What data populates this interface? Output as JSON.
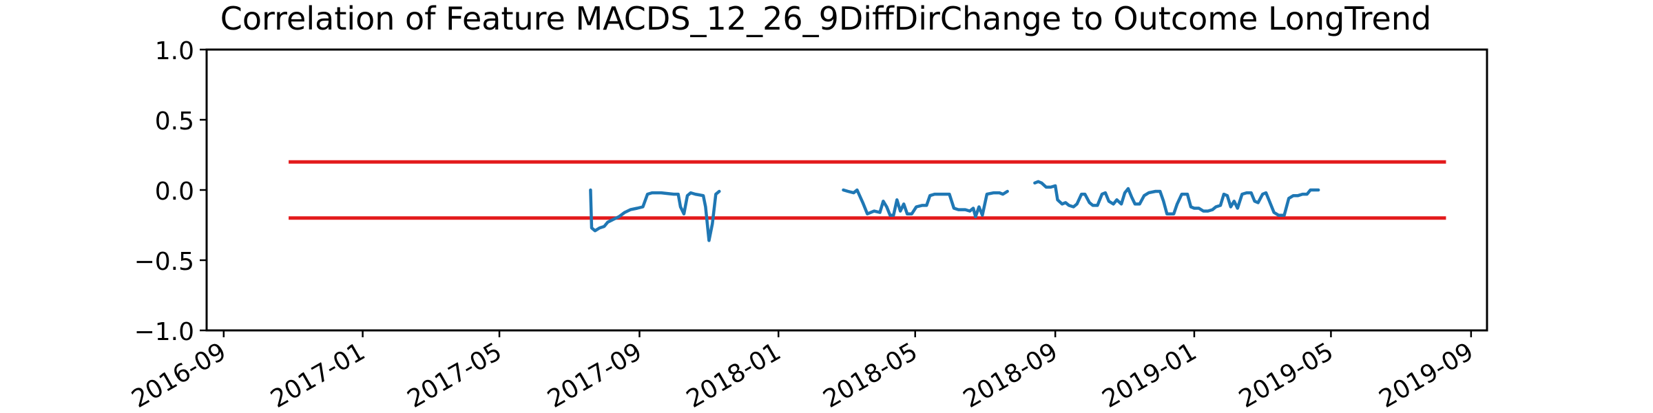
{
  "chart_data": {
    "type": "line",
    "title": "Correlation of Feature MACDS_12_26_9DiffDirChange to Outcome LongTrend",
    "xlabel": "",
    "ylabel": "",
    "ylim": [
      -1.0,
      1.0
    ],
    "xlim": [
      "2016-08-17",
      "2019-09-15"
    ],
    "grid": false,
    "legend": "none",
    "x_ticks": [
      "2016-09",
      "2017-01",
      "2017-05",
      "2017-09",
      "2018-01",
      "2018-05",
      "2018-09",
      "2019-01",
      "2019-05",
      "2019-09"
    ],
    "y_ticks": [
      "1.0",
      "0.5",
      "0.0",
      "−0.5",
      "−1.0"
    ],
    "y_tick_values": [
      1.0,
      0.5,
      0.0,
      -0.5,
      -1.0
    ],
    "colors": {
      "series": "#1f77b4",
      "threshold": "#e31a1c",
      "axes": "#000000"
    },
    "thresholds": [
      {
        "y": 0.2,
        "x": [
          "2016-10-28",
          "2019-08-10"
        ]
      },
      {
        "y": -0.2,
        "x": [
          "2016-10-28",
          "2019-08-10"
        ]
      }
    ],
    "series": [
      {
        "values": [
          [
            "2017-07-20",
            0.0
          ],
          [
            "2017-07-21",
            -0.27
          ],
          [
            "2017-07-24",
            -0.29
          ],
          [
            "2017-07-28",
            -0.27
          ],
          [
            "2017-08-01",
            -0.26
          ],
          [
            "2017-08-04",
            -0.23
          ],
          [
            "2017-08-09",
            -0.21
          ],
          [
            "2017-08-14",
            -0.19
          ],
          [
            "2017-08-19",
            -0.16
          ],
          [
            "2017-08-24",
            -0.14
          ],
          [
            "2017-08-30",
            -0.13
          ],
          [
            "2017-09-04",
            -0.12
          ],
          [
            "2017-09-08",
            -0.03
          ],
          [
            "2017-09-12",
            -0.02
          ],
          [
            "2017-09-20",
            -0.02
          ],
          [
            "2017-10-01",
            -0.03
          ],
          [
            "2017-10-05",
            -0.03
          ],
          [
            "2017-10-07",
            -0.12
          ],
          [
            "2017-10-10",
            -0.17
          ],
          [
            "2017-10-13",
            -0.04
          ],
          [
            "2017-10-16",
            -0.02
          ],
          [
            "2017-10-20",
            -0.03
          ],
          [
            "2017-10-27",
            -0.04
          ],
          [
            "2017-10-29",
            -0.12
          ],
          [
            "2017-11-01",
            -0.36
          ],
          [
            "2017-11-04",
            -0.24
          ],
          [
            "2017-11-07",
            -0.03
          ],
          [
            "2017-11-10",
            -0.01
          ],
          [
            "2017-11-11",
            null
          ],
          [
            "2018-02-27",
            0.0
          ],
          [
            "2018-03-03",
            -0.01
          ],
          [
            "2018-03-08",
            -0.02
          ],
          [
            "2018-03-11",
            0.0
          ],
          [
            "2018-03-16",
            -0.09
          ],
          [
            "2018-03-20",
            -0.17
          ],
          [
            "2018-03-26",
            -0.15
          ],
          [
            "2018-03-31",
            -0.16
          ],
          [
            "2018-04-03",
            -0.08
          ],
          [
            "2018-04-06",
            -0.12
          ],
          [
            "2018-04-09",
            -0.18
          ],
          [
            "2018-04-12",
            -0.18
          ],
          [
            "2018-04-15",
            -0.07
          ],
          [
            "2018-04-18",
            -0.15
          ],
          [
            "2018-04-21",
            -0.1
          ],
          [
            "2018-04-24",
            -0.17
          ],
          [
            "2018-04-28",
            -0.17
          ],
          [
            "2018-05-02",
            -0.12
          ],
          [
            "2018-05-07",
            -0.11
          ],
          [
            "2018-05-11",
            -0.11
          ],
          [
            "2018-05-14",
            -0.04
          ],
          [
            "2018-05-18",
            -0.03
          ],
          [
            "2018-05-24",
            -0.03
          ],
          [
            "2018-05-31",
            -0.03
          ],
          [
            "2018-06-04",
            -0.13
          ],
          [
            "2018-06-08",
            -0.14
          ],
          [
            "2018-06-14",
            -0.14
          ],
          [
            "2018-06-18",
            -0.15
          ],
          [
            "2018-06-21",
            -0.13
          ],
          [
            "2018-06-23",
            -0.19
          ],
          [
            "2018-06-26",
            -0.12
          ],
          [
            "2018-06-29",
            -0.18
          ],
          [
            "2018-07-03",
            -0.03
          ],
          [
            "2018-07-09",
            -0.02
          ],
          [
            "2018-07-14",
            -0.02
          ],
          [
            "2018-07-17",
            -0.03
          ],
          [
            "2018-07-21",
            -0.01
          ],
          [
            "2018-07-22",
            null
          ],
          [
            "2018-08-14",
            0.05
          ],
          [
            "2018-08-17",
            0.06
          ],
          [
            "2018-08-20",
            0.05
          ],
          [
            "2018-08-24",
            0.02
          ],
          [
            "2018-08-28",
            0.02
          ],
          [
            "2018-09-01",
            0.03
          ],
          [
            "2018-09-03",
            -0.07
          ],
          [
            "2018-09-07",
            -0.1
          ],
          [
            "2018-09-10",
            -0.09
          ],
          [
            "2018-09-13",
            -0.11
          ],
          [
            "2018-09-17",
            -0.12
          ],
          [
            "2018-09-20",
            -0.1
          ],
          [
            "2018-09-24",
            -0.03
          ],
          [
            "2018-09-27",
            -0.03
          ],
          [
            "2018-10-01",
            -0.09
          ],
          [
            "2018-10-04",
            -0.11
          ],
          [
            "2018-10-08",
            -0.11
          ],
          [
            "2018-10-12",
            -0.03
          ],
          [
            "2018-10-15",
            -0.02
          ],
          [
            "2018-10-18",
            -0.08
          ],
          [
            "2018-10-22",
            -0.1
          ],
          [
            "2018-10-25",
            -0.07
          ],
          [
            "2018-10-29",
            -0.1
          ],
          [
            "2018-11-01",
            -0.02
          ],
          [
            "2018-11-04",
            0.01
          ],
          [
            "2018-11-07",
            -0.05
          ],
          [
            "2018-11-10",
            -0.1
          ],
          [
            "2018-11-14",
            -0.1
          ],
          [
            "2018-11-18",
            -0.04
          ],
          [
            "2018-11-22",
            -0.02
          ],
          [
            "2018-11-28",
            -0.01
          ],
          [
            "2018-12-02",
            -0.01
          ],
          [
            "2018-12-05",
            -0.08
          ],
          [
            "2018-12-08",
            -0.17
          ],
          [
            "2018-12-14",
            -0.17
          ],
          [
            "2018-12-17",
            -0.1
          ],
          [
            "2018-12-21",
            -0.03
          ],
          [
            "2018-12-26",
            -0.03
          ],
          [
            "2018-12-29",
            -0.12
          ],
          [
            "2019-01-01",
            -0.13
          ],
          [
            "2019-01-05",
            -0.13
          ],
          [
            "2019-01-09",
            -0.15
          ],
          [
            "2019-01-13",
            -0.15
          ],
          [
            "2019-01-17",
            -0.14
          ],
          [
            "2019-01-20",
            -0.12
          ],
          [
            "2019-01-24",
            -0.11
          ],
          [
            "2019-01-27",
            -0.03
          ],
          [
            "2019-01-30",
            -0.04
          ],
          [
            "2019-02-02",
            -0.12
          ],
          [
            "2019-02-05",
            -0.08
          ],
          [
            "2019-02-08",
            -0.13
          ],
          [
            "2019-02-12",
            -0.03
          ],
          [
            "2019-02-16",
            -0.02
          ],
          [
            "2019-02-20",
            -0.02
          ],
          [
            "2019-02-23",
            -0.08
          ],
          [
            "2019-02-26",
            -0.09
          ],
          [
            "2019-03-02",
            -0.03
          ],
          [
            "2019-03-05",
            -0.02
          ],
          [
            "2019-03-08",
            -0.08
          ],
          [
            "2019-03-12",
            -0.16
          ],
          [
            "2019-03-16",
            -0.18
          ],
          [
            "2019-03-21",
            -0.18
          ],
          [
            "2019-03-25",
            -0.06
          ],
          [
            "2019-03-29",
            -0.04
          ],
          [
            "2019-04-02",
            -0.04
          ],
          [
            "2019-04-06",
            -0.03
          ],
          [
            "2019-04-10",
            -0.03
          ],
          [
            "2019-04-13",
            0.0
          ],
          [
            "2019-04-16",
            0.0
          ],
          [
            "2019-04-20",
            0.0
          ]
        ]
      }
    ]
  }
}
